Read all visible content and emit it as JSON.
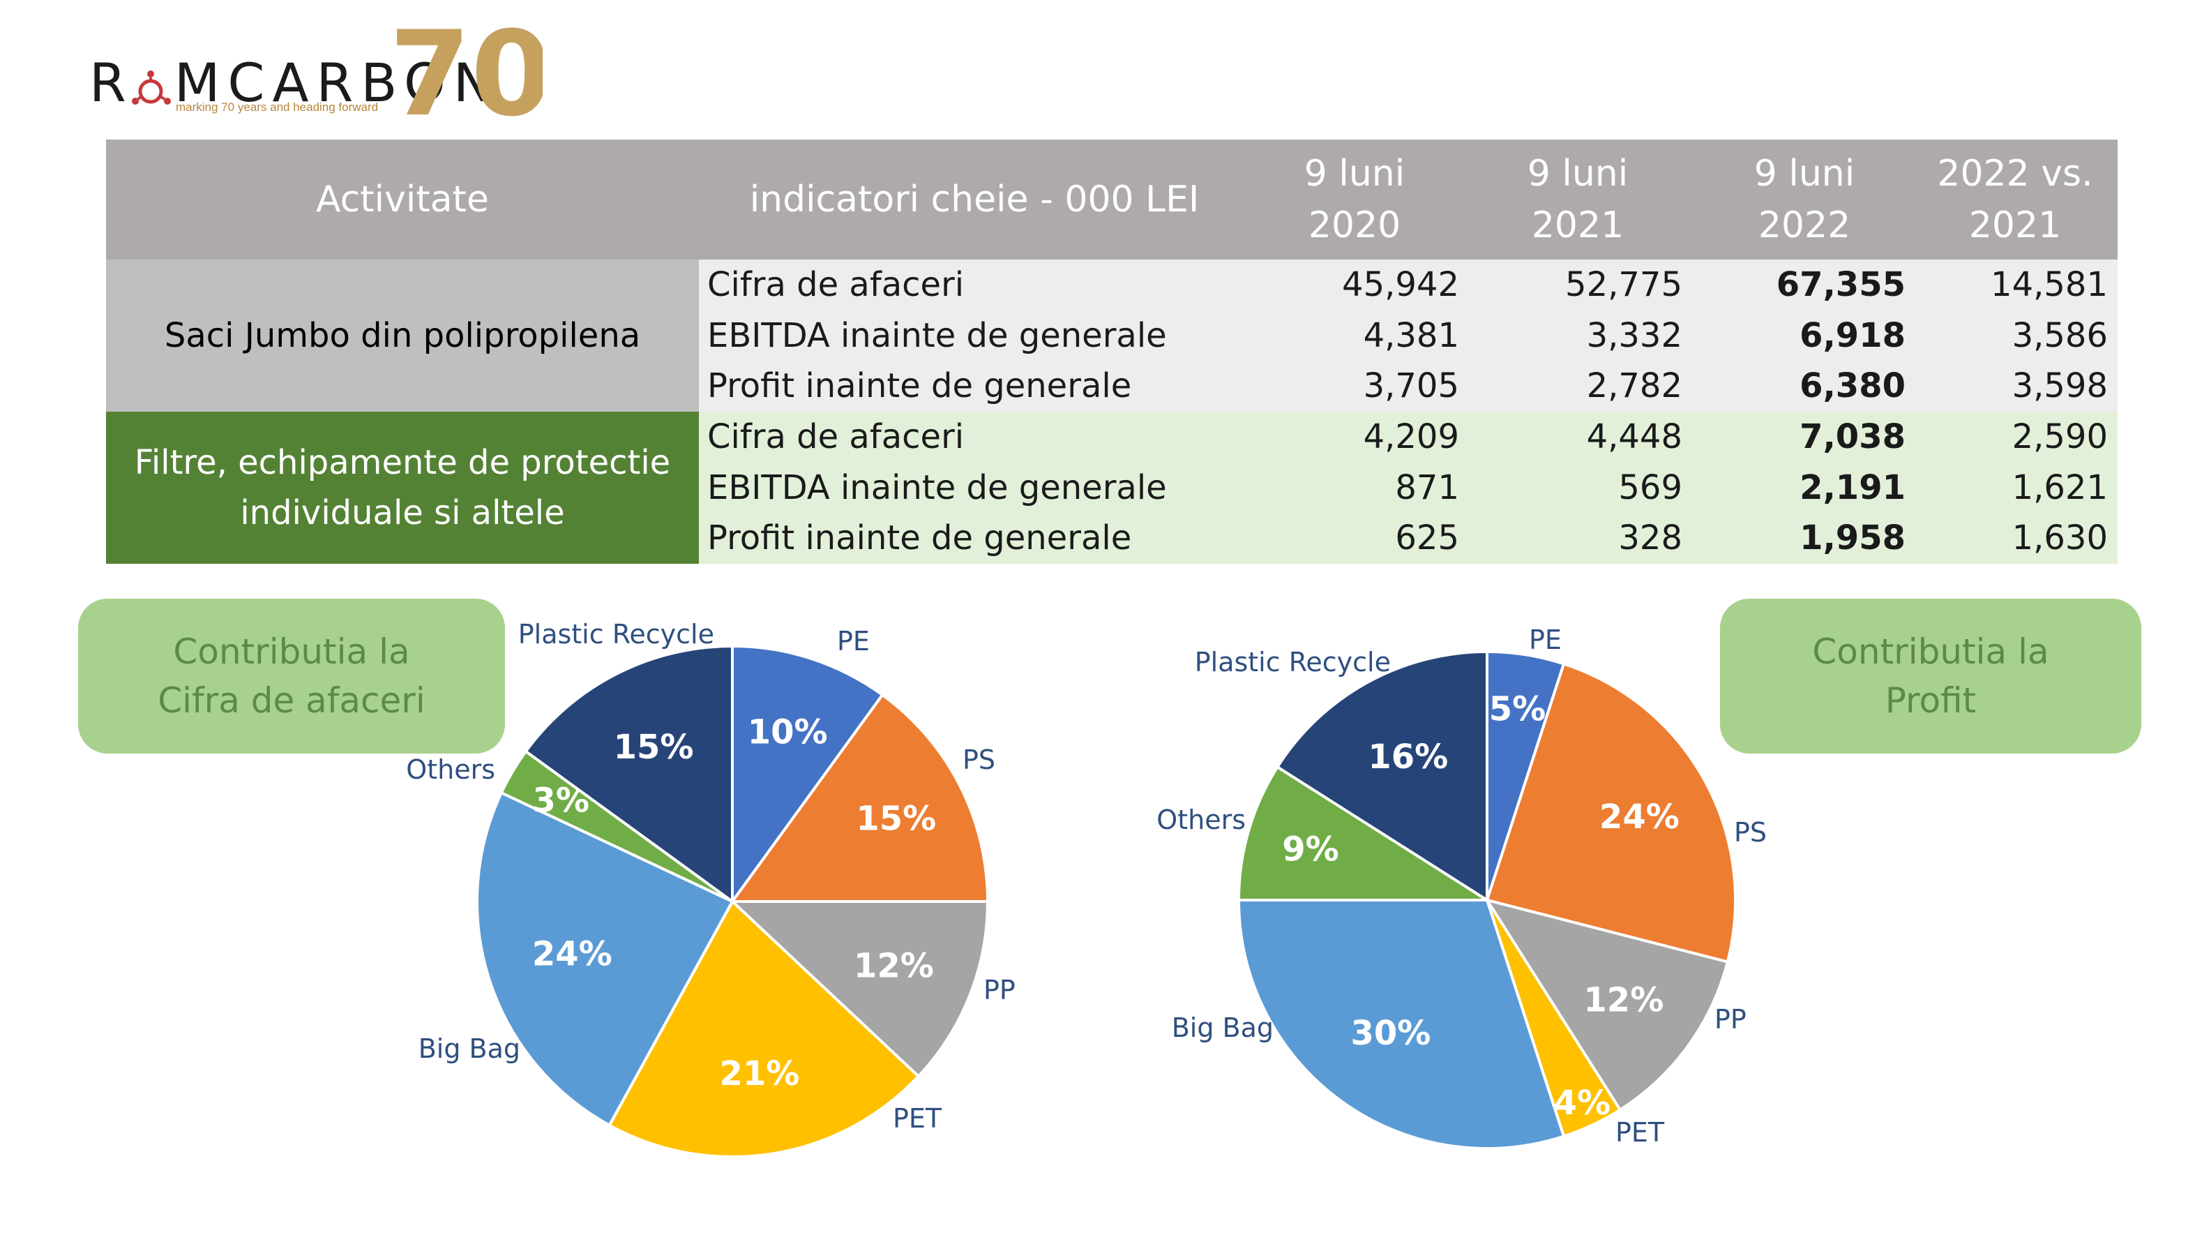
{
  "logo": {
    "name": "ROMCARBON",
    "tagline": "marking 70 years and heading forward",
    "anniversary": "70",
    "colors": {
      "text": "#1b1b1b",
      "accent": "#c8373b",
      "gold": "#b8863b"
    }
  },
  "table": {
    "headers": {
      "activity": "Activitate",
      "indicators": "indicatori cheie - 000 LEI",
      "col1": [
        "9 luni",
        "2020"
      ],
      "col2": [
        "9 luni",
        "2021"
      ],
      "col3": [
        "9 luni",
        "2022"
      ],
      "col4": [
        "2022 vs.",
        "2021"
      ]
    },
    "groups": [
      {
        "category": "Saci Jumbo din polipropilena",
        "rows": [
          {
            "label": "Cifra de afaceri",
            "v2020": "45,942",
            "v2021": "52,775",
            "v2022": "67,355",
            "diff": "14,581"
          },
          {
            "label": "EBITDA inainte de generale",
            "v2020": "4,381",
            "v2021": "3,332",
            "v2022": "6,918",
            "diff": "3,586"
          },
          {
            "label": "Profit inainte de generale",
            "v2020": "3,705",
            "v2021": "2,782",
            "v2022": "6,380",
            "diff": "3,598"
          }
        ]
      },
      {
        "category": "Filtre, echipamente de protectie individuale si altele",
        "rows": [
          {
            "label": "Cifra de afaceri",
            "v2020": "4,209",
            "v2021": "4,448",
            "v2022": "7,038",
            "diff": "2,590"
          },
          {
            "label": "EBITDA inainte de generale",
            "v2020": "871",
            "v2021": "569",
            "v2022": "2,191",
            "diff": "1,621"
          },
          {
            "label": "Profit inainte de generale",
            "v2020": "625",
            "v2021": "328",
            "v2022": "1,958",
            "diff": "1,630"
          }
        ]
      }
    ],
    "colors": {
      "header": "#aeaaaa",
      "cat1": "#bfbfbf",
      "rows1": "#ededed",
      "cat2": "#548235",
      "rows2": "#e2f0d9"
    }
  },
  "boxes": {
    "left": [
      "Contributia la",
      "Cifra de afaceri"
    ],
    "right": [
      "Contributia la",
      "Profit"
    ]
  },
  "chart_data": [
    {
      "type": "pie",
      "title": "Contributia la Cifra de afaceri",
      "slices": [
        {
          "name": "PE",
          "value": 10,
          "label": "10%",
          "color": "#4472c4"
        },
        {
          "name": "PS",
          "value": 15,
          "label": "15%",
          "color": "#ed7d31"
        },
        {
          "name": "PP",
          "value": 12,
          "label": "12%",
          "color": "#a5a5a5"
        },
        {
          "name": "PET",
          "value": 21,
          "label": "21%",
          "color": "#ffc000"
        },
        {
          "name": "Big Bag",
          "value": 24,
          "label": "24%",
          "color": "#5b9bd5"
        },
        {
          "name": "Others",
          "value": 3,
          "label": "3%",
          "color": "#70ad47"
        },
        {
          "name": "Plastic Recycle",
          "value": 15,
          "label": "15%",
          "color": "#264478"
        }
      ]
    },
    {
      "type": "pie",
      "title": "Contributia la Profit",
      "slices": [
        {
          "name": "PE",
          "value": 5,
          "label": "5%",
          "color": "#4472c4"
        },
        {
          "name": "PS",
          "value": 24,
          "label": "24%",
          "color": "#ed7d31"
        },
        {
          "name": "PP",
          "value": 12,
          "label": "12%",
          "color": "#a5a5a5"
        },
        {
          "name": "PET",
          "value": 4,
          "label": "4%",
          "color": "#ffc000"
        },
        {
          "name": "Big Bag",
          "value": 30,
          "label": "30%",
          "color": "#5b9bd5"
        },
        {
          "name": "Others",
          "value": 9,
          "label": "9%",
          "color": "#70ad47"
        },
        {
          "name": "Plastic Recycle",
          "value": 16,
          "label": "16%",
          "color": "#264478"
        }
      ]
    }
  ]
}
